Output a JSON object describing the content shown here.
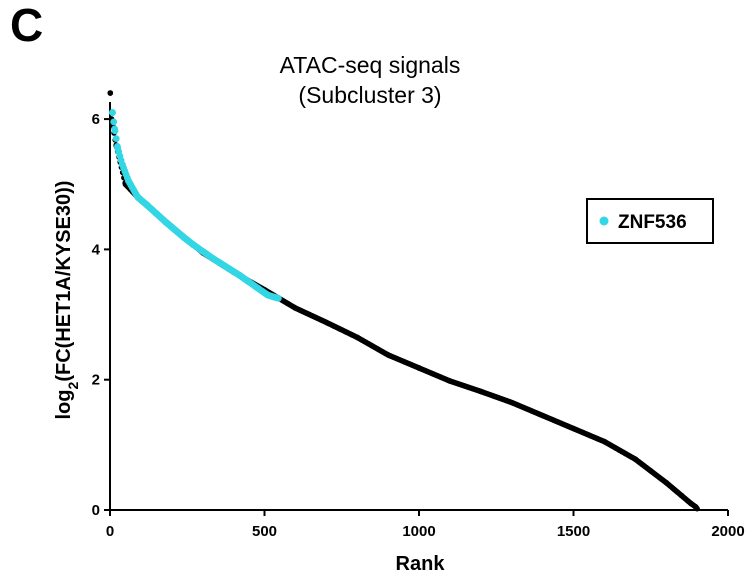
{
  "panel_label": "C",
  "chart_data": {
    "type": "scatter",
    "title": "ATAC-seq signals",
    "subtitle": "(Subcluster 3)",
    "xlabel": "Rank",
    "ylabel_main": "log",
    "ylabel_sub": "2",
    "ylabel_rest": "(FC(HET1A/KYSE30))",
    "xlim": [
      0,
      2000
    ],
    "ylim": [
      0,
      6.6
    ],
    "xticks": [
      0,
      500,
      1000,
      1500,
      2000
    ],
    "yticks": [
      0,
      2,
      4,
      6
    ],
    "grid": false,
    "legend_position": "top-right",
    "series": [
      {
        "name": "",
        "color": "#000000",
        "x": [
          1,
          5,
          20,
          50,
          100,
          150,
          200,
          300,
          400,
          500,
          600,
          700,
          800,
          900,
          1000,
          1100,
          1200,
          1300,
          1400,
          1500,
          1600,
          1700,
          1750,
          1800,
          1850,
          1880,
          1895,
          1900
        ],
        "y": [
          6.4,
          6.0,
          5.6,
          5.0,
          4.75,
          4.55,
          4.35,
          3.95,
          3.65,
          3.38,
          3.1,
          2.88,
          2.65,
          2.38,
          2.18,
          1.98,
          1.82,
          1.65,
          1.45,
          1.25,
          1.05,
          0.78,
          0.6,
          0.42,
          0.22,
          0.1,
          0.05,
          0.02
        ]
      },
      {
        "name": "ZNF536",
        "color": "#33d6e5",
        "x": [
          8,
          15,
          25,
          40,
          60,
          90,
          120,
          150,
          180,
          210,
          240,
          270,
          300,
          330,
          360,
          390,
          420,
          450,
          480,
          510,
          530,
          545
        ],
        "y": [
          6.1,
          5.85,
          5.55,
          5.3,
          5.05,
          4.8,
          4.68,
          4.55,
          4.42,
          4.3,
          4.18,
          4.07,
          3.97,
          3.87,
          3.78,
          3.69,
          3.6,
          3.5,
          3.4,
          3.3,
          3.27,
          3.25
        ]
      }
    ]
  }
}
